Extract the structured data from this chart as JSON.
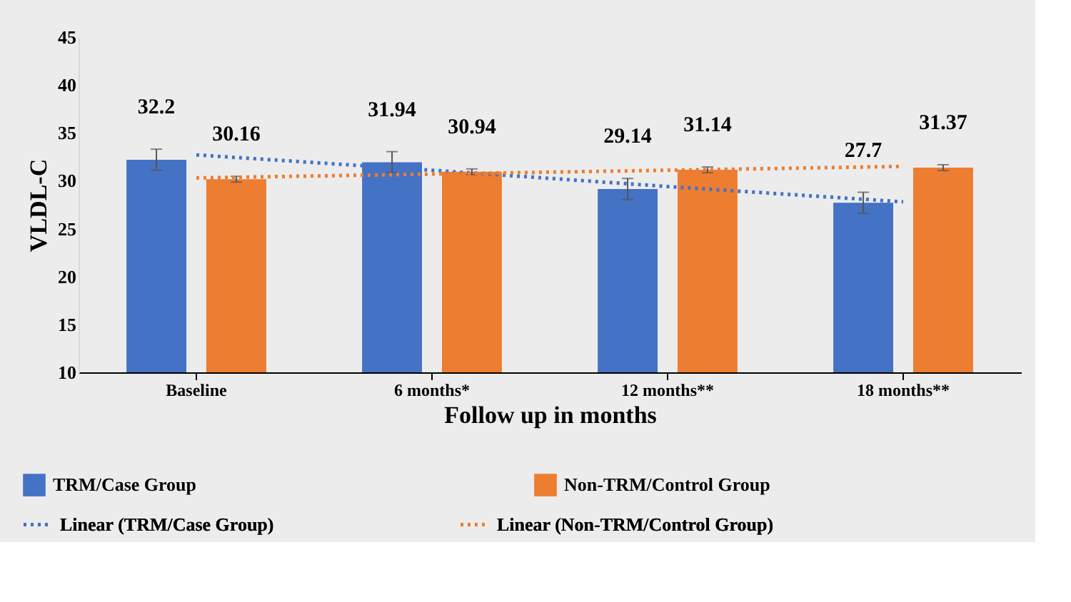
{
  "chart_data": {
    "type": "bar",
    "xlabel": "Follow up in months",
    "ylabel": "VLDL-C",
    "categories": [
      "Baseline",
      "6 months*",
      "12 months**",
      "18 months**"
    ],
    "series": [
      {
        "name": "TRM/Case Group",
        "color": "#4472c4",
        "values": [
          32.2,
          31.94,
          29.14,
          27.7
        ],
        "value_labels": [
          "32.2",
          "31.94",
          "29.14",
          "27.7"
        ],
        "errors": [
          1.1,
          1.1,
          1.1,
          1.1
        ]
      },
      {
        "name": "Non-TRM/Control Group",
        "color": "#ed7d31",
        "values": [
          30.16,
          30.94,
          31.14,
          31.37
        ],
        "value_labels": [
          "30.16",
          "30.94",
          "31.14",
          "31.37"
        ],
        "errors": [
          0.3,
          0.3,
          0.3,
          0.3
        ]
      },
      {
        "name": "Linear (TRM/Case Group)",
        "type": "line",
        "line_style": "dotted",
        "color": "#4472c4",
        "x": [
          "Baseline",
          "6 months*",
          "12 months**",
          "18 months**"
        ],
        "values": [
          32.7,
          31.1,
          29.4,
          27.8
        ]
      },
      {
        "name": "Linear (Non-TRM/Control Group)",
        "type": "line",
        "line_style": "dotted",
        "color": "#ed7d31",
        "x": [
          "Baseline",
          "6 months*",
          "12 months**",
          "18 months**"
        ],
        "values": [
          30.3,
          30.7,
          31.1,
          31.5
        ]
      }
    ],
    "ylim": [
      10,
      45
    ],
    "yticks": [
      10,
      15,
      20,
      25,
      30,
      35,
      40,
      45
    ],
    "grid": false,
    "legend": "bottom"
  }
}
